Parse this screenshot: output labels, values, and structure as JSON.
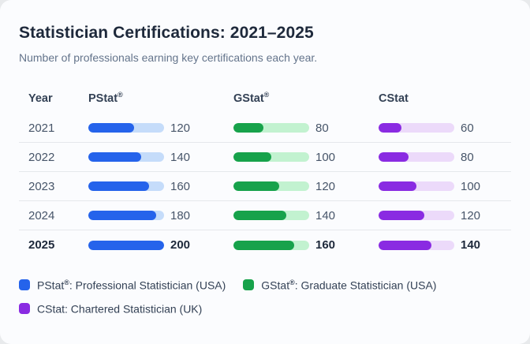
{
  "card": {
    "title": "Statistician Certifications: 2021–2025",
    "subtitle": "Number of professionals earning key certifications each year."
  },
  "chart_data": {
    "type": "table",
    "title": "Statistician Certifications: 2021–2025",
    "subtitle": "Number of professionals earning key certifications each year.",
    "columns": [
      {
        "label": "Year",
        "sup": ""
      },
      {
        "label": "PStat",
        "sup": "®"
      },
      {
        "label": "GStat",
        "sup": "®"
      },
      {
        "label": "CStat",
        "sup": ""
      }
    ],
    "max_value": 200,
    "rows": [
      {
        "year": "2021",
        "pstat": 120,
        "gstat": 80,
        "cstat": 60
      },
      {
        "year": "2022",
        "pstat": 140,
        "gstat": 100,
        "cstat": 80
      },
      {
        "year": "2023",
        "pstat": 160,
        "gstat": 120,
        "cstat": 100
      },
      {
        "year": "2024",
        "pstat": 180,
        "gstat": 140,
        "cstat": 120
      },
      {
        "year": "2025",
        "pstat": 200,
        "gstat": 160,
        "cstat": 140
      }
    ]
  },
  "legend": {
    "items": [
      {
        "name": "PStat",
        "sup": "®",
        "desc": ": Professional Statistician (USA)"
      },
      {
        "name": "GStat",
        "sup": "®",
        "desc": ": Graduate Statistician (USA)"
      },
      {
        "name": "CStat",
        "sup": "",
        "desc": ": Chartered Statistician (UK)"
      }
    ]
  },
  "colors": {
    "pstat-fill": "#2563eb",
    "pstat-track": "#c5dcfa",
    "gstat-fill": "#17a24b",
    "gstat-track": "#c2f2d0",
    "cstat-fill": "#8a2be2",
    "cstat-track": "#ecdafa",
    "card-bg": "#fbfcfe",
    "page-bg": "#e8eaec",
    "divider": "#e5e8ec",
    "title": "#1e293b",
    "subtitle": "#64748b",
    "header-text": "#334155",
    "body-text": "#475569",
    "emph-text": "#1e293b",
    "legend-text": "#334155"
  }
}
